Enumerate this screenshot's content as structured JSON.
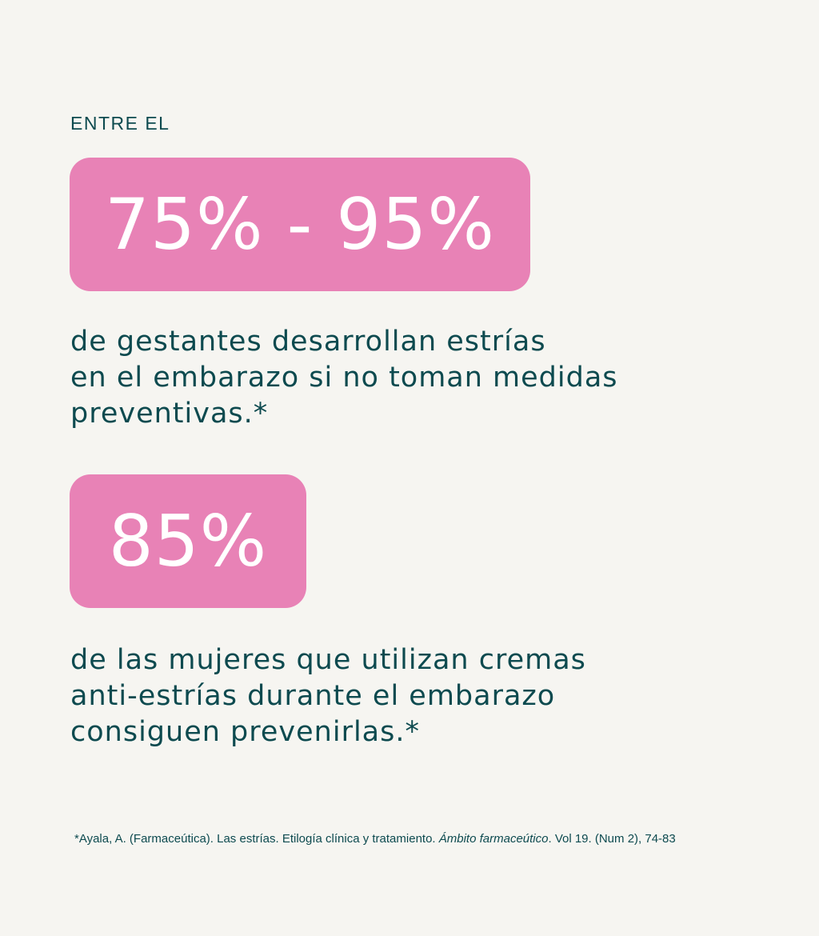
{
  "intro_label": "ENTRE EL",
  "stat1": {
    "value": "75% - 95%",
    "description_lines": [
      "de gestantes desarrollan estrías",
      "en el embarazo si no toman medidas",
      "preventivas.*"
    ]
  },
  "stat2": {
    "value": "85%",
    "description_lines": [
      "de las mujeres que utilizan cremas",
      "anti-estrías durante el embarazo",
      "consiguen prevenirlas.*"
    ]
  },
  "footnote": {
    "before_italic": "*Ayala, A. (Farmaceútica). Las estrías. Etilogía clínica y tratamiento. ",
    "italic": "Ámbito farmaceútico",
    "after_italic": ". Vol 19. (Num 2), 74-83"
  },
  "colors": {
    "background": "#f6f5f1",
    "highlight_box": "#e882b6",
    "text": "#0d4a4f",
    "stat_text": "#ffffff"
  }
}
